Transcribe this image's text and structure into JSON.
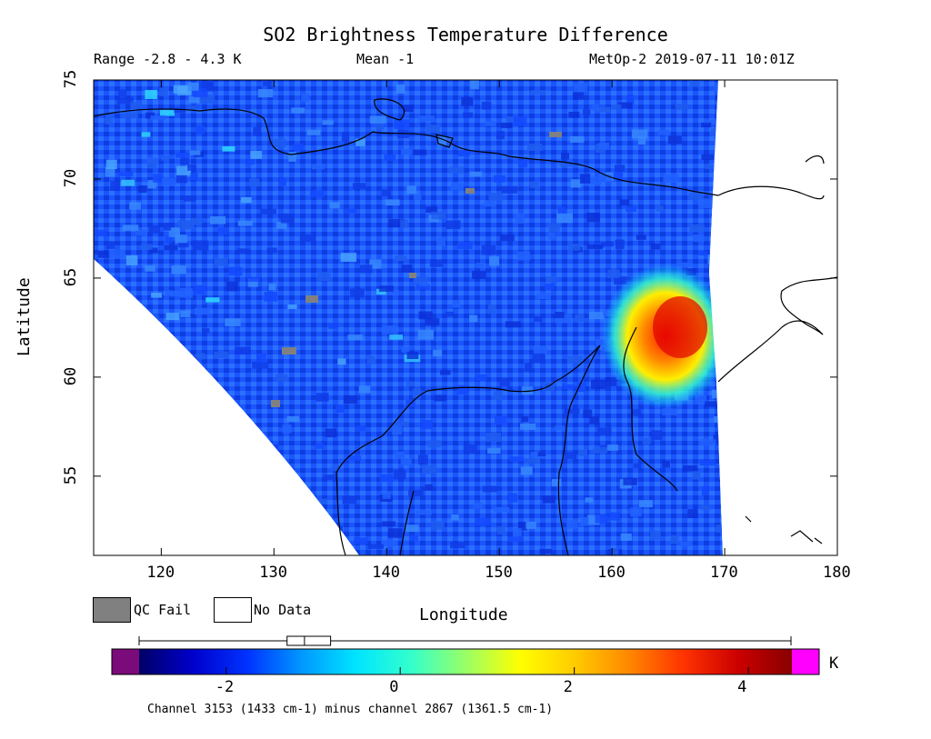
{
  "title": "SO2 Brightness Temperature Difference",
  "header": {
    "range_text": "Range -2.8 - 4.3 K",
    "mean_text": "Mean -1",
    "satellite_time": "MetOp-2 2019-07-11 10:01Z"
  },
  "map": {
    "projection_extent": {
      "lon": [
        114,
        180
      ],
      "lat": [
        51,
        75
      ]
    },
    "x_axis_label": "Longitude",
    "y_axis_label": "Latitude",
    "x_ticks": [
      "120",
      "130",
      "140",
      "150",
      "160",
      "170",
      "180"
    ],
    "y_ticks": [
      "55",
      "60",
      "65",
      "70",
      "75"
    ],
    "no_data_color": "#ffffff",
    "qc_fail_color": "#808080",
    "plume_peak_location": {
      "lon_range": [
        162,
        169
      ],
      "lat_range": [
        59,
        64
      ]
    }
  },
  "legend": {
    "qc_fail_label": "QC Fail",
    "no_data_label": "No Data"
  },
  "colorbar": {
    "unit": "K",
    "ticks": [
      "-2",
      "0",
      "2",
      "4"
    ],
    "range": [
      -3,
      4.5
    ],
    "under_color": "#7b0a7b",
    "over_color": "#ff00ff",
    "stops": [
      "#000066",
      "#0000cc",
      "#0033ff",
      "#0099ff",
      "#00e5ff",
      "#33ffcc",
      "#99ff66",
      "#ffff00",
      "#ffcc00",
      "#ff8800",
      "#ff3300",
      "#cc0000",
      "#880000"
    ],
    "boxplot": {
      "min": -2.8,
      "q1": -1.3,
      "median": -1.1,
      "q3": -0.8,
      "max": 4.3
    },
    "caption": "Channel 3153 (1433 cm-1) minus channel 2867 (1361.5 cm-1)"
  }
}
